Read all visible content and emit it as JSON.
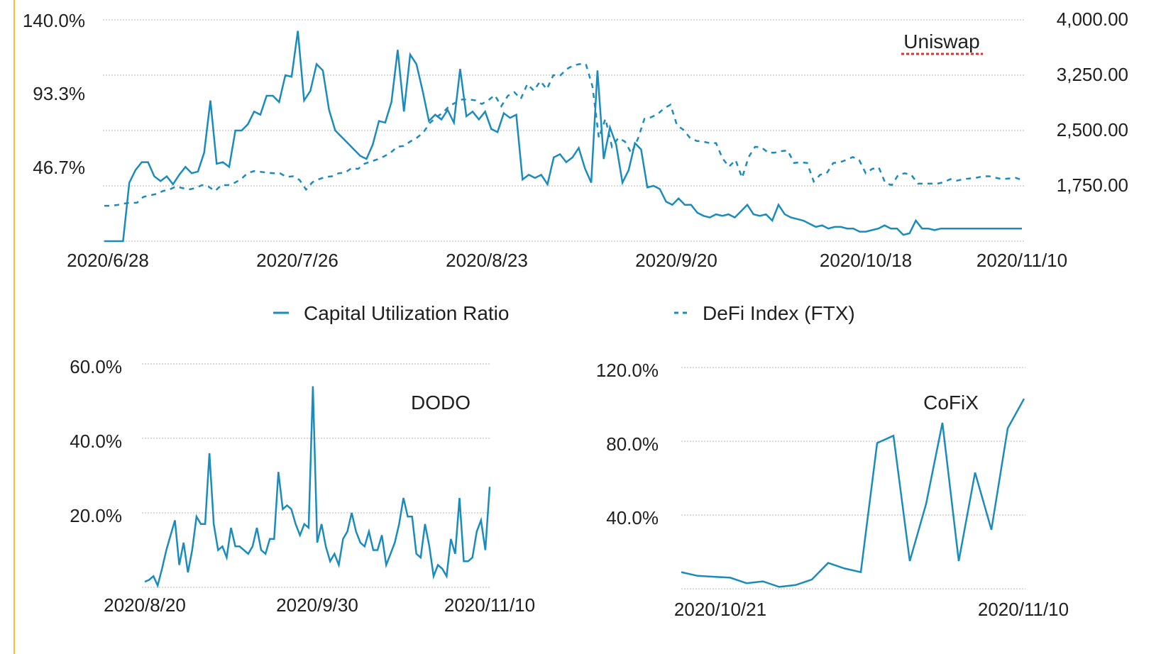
{
  "colors": {
    "series": "#1a8bbd",
    "grid": "#b5b5b5",
    "accent_rule": "#f1c232",
    "spellcheck_underline": "#e0322a"
  },
  "legend": [
    {
      "label": "Capital Utilization Ratio",
      "style": "solid"
    },
    {
      "label": "DeFi Index (FTX)",
      "style": "dashed"
    }
  ],
  "chart_data": [
    {
      "type": "line",
      "title": "Uniswap",
      "x_tick_labels": [
        "2020/6/28",
        "2020/7/26",
        "2020/8/23",
        "2020/9/20",
        "2020/10/18",
        "2020/11/10"
      ],
      "y_left_tick_labels": [
        "140.0%",
        "93.3%",
        "46.7%"
      ],
      "y_right_tick_labels": [
        "4,000.00",
        "3,250.00",
        "2,500.00",
        "1,750.00"
      ],
      "y_left_range": [
        0,
        140
      ],
      "y_right_range": [
        1000,
        4000
      ],
      "grid": true,
      "legend_position": "bottom",
      "series": [
        {
          "name": "Capital Utilization Ratio",
          "axis": "left",
          "style": "solid",
          "values": [
            0,
            0,
            0,
            0,
            37,
            45,
            50,
            50,
            41,
            38,
            41,
            36,
            42,
            47,
            43,
            44,
            56,
            89,
            49,
            50,
            47,
            70,
            70,
            74,
            82,
            80,
            92,
            92,
            88,
            105,
            104,
            133,
            89,
            95,
            112,
            108,
            83,
            70,
            66,
            62,
            58,
            54,
            52,
            61,
            76,
            75,
            88,
            121,
            82,
            118,
            112,
            95,
            76,
            80,
            77,
            83,
            75,
            109,
            79,
            82,
            77,
            82,
            71,
            69,
            81,
            78,
            80,
            39,
            42,
            40,
            42,
            36,
            53,
            55,
            50,
            53,
            59,
            46,
            37,
            108,
            52,
            72,
            61,
            37,
            45,
            62,
            58,
            34,
            35,
            33,
            25,
            23,
            27,
            23,
            23,
            18,
            16,
            15,
            17,
            16,
            17,
            15,
            19,
            23,
            17,
            16,
            17,
            13,
            23,
            17,
            15,
            14,
            13,
            11,
            9,
            10,
            8,
            9,
            9,
            8,
            8,
            6,
            6,
            7,
            8,
            10,
            8,
            8,
            4,
            5,
            13,
            8,
            8,
            7,
            8,
            8,
            8,
            8,
            8,
            8,
            8,
            8,
            8,
            8,
            8,
            8,
            8,
            8
          ]
        },
        {
          "name": "DeFi Index (FTX)",
          "axis": "right",
          "style": "dashed",
          "values": [
            1480,
            1480,
            1490,
            1510,
            1520,
            1520,
            1600,
            1620,
            1640,
            1680,
            1700,
            1740,
            1720,
            1700,
            1720,
            1760,
            1740,
            1680,
            1760,
            1760,
            1790,
            1840,
            1920,
            1950,
            1940,
            1930,
            1920,
            1920,
            1870,
            1880,
            1830,
            1700,
            1800,
            1840,
            1870,
            1880,
            1920,
            1930,
            1990,
            1980,
            2050,
            2080,
            2110,
            2150,
            2200,
            2280,
            2290,
            2350,
            2400,
            2470,
            2600,
            2680,
            2740,
            2830,
            2880,
            2920,
            2920,
            2910,
            2860,
            2910,
            2980,
            2830,
            2970,
            3020,
            2930,
            3130,
            3040,
            3170,
            3060,
            3250,
            3240,
            3330,
            3380,
            3400,
            3400,
            3100,
            2400,
            2660,
            2280,
            2400,
            2350,
            2190,
            2390,
            2660,
            2680,
            2720,
            2800,
            2850,
            2570,
            2510,
            2400,
            2360,
            2350,
            2330,
            2330,
            2120,
            2010,
            2100,
            1860,
            2140,
            2280,
            2270,
            2200,
            2200,
            2220,
            2230,
            2060,
            2070,
            2060,
            1810,
            1900,
            1920,
            2060,
            2070,
            2100,
            2140,
            2100,
            1920,
            1980,
            2000,
            1790,
            1760,
            1900,
            1920,
            1900,
            1780,
            1780,
            1780,
            1780,
            1800,
            1840,
            1820,
            1840,
            1850,
            1860,
            1880,
            1880,
            1860,
            1840,
            1850,
            1860,
            1830
          ]
        }
      ]
    },
    {
      "type": "line",
      "title": "DODO",
      "x_tick_labels": [
        "2020/8/20",
        "2020/9/30",
        "2020/11/10"
      ],
      "y_tick_labels": [
        "60.0%",
        "40.0%",
        "20.0%"
      ],
      "y_range": [
        0,
        60
      ],
      "grid": true,
      "series": [
        {
          "values": [
            1.5,
            2,
            3,
            0.5,
            5,
            10,
            14,
            18,
            6,
            12,
            4,
            10,
            19,
            17,
            17,
            36,
            17,
            10,
            11,
            8,
            16,
            11,
            11,
            10,
            9,
            11,
            16,
            10,
            9,
            13,
            13,
            31,
            21,
            22,
            21,
            17,
            14,
            17,
            16,
            54,
            12,
            17,
            11,
            7,
            9,
            6,
            13,
            15,
            20,
            15,
            12,
            11,
            15,
            10,
            10,
            14,
            6,
            9,
            12,
            17,
            24,
            19,
            19,
            9,
            8,
            17,
            11,
            3,
            6,
            5,
            3,
            13,
            9,
            24,
            7,
            7,
            8,
            15,
            18,
            10,
            27
          ]
        }
      ]
    },
    {
      "type": "line",
      "title": "CoFiX",
      "x_tick_labels": [
        "2020/10/21",
        "2020/11/10"
      ],
      "y_tick_labels": [
        "120.0%",
        "80.0%",
        "40.0%"
      ],
      "y_range": [
        0,
        120
      ],
      "grid": true,
      "series": [
        {
          "values": [
            9,
            7,
            6.5,
            6,
            3,
            4,
            1,
            2,
            5,
            14,
            11,
            9,
            79,
            83,
            15,
            46,
            90,
            15,
            63,
            32,
            87,
            103
          ]
        }
      ]
    }
  ]
}
